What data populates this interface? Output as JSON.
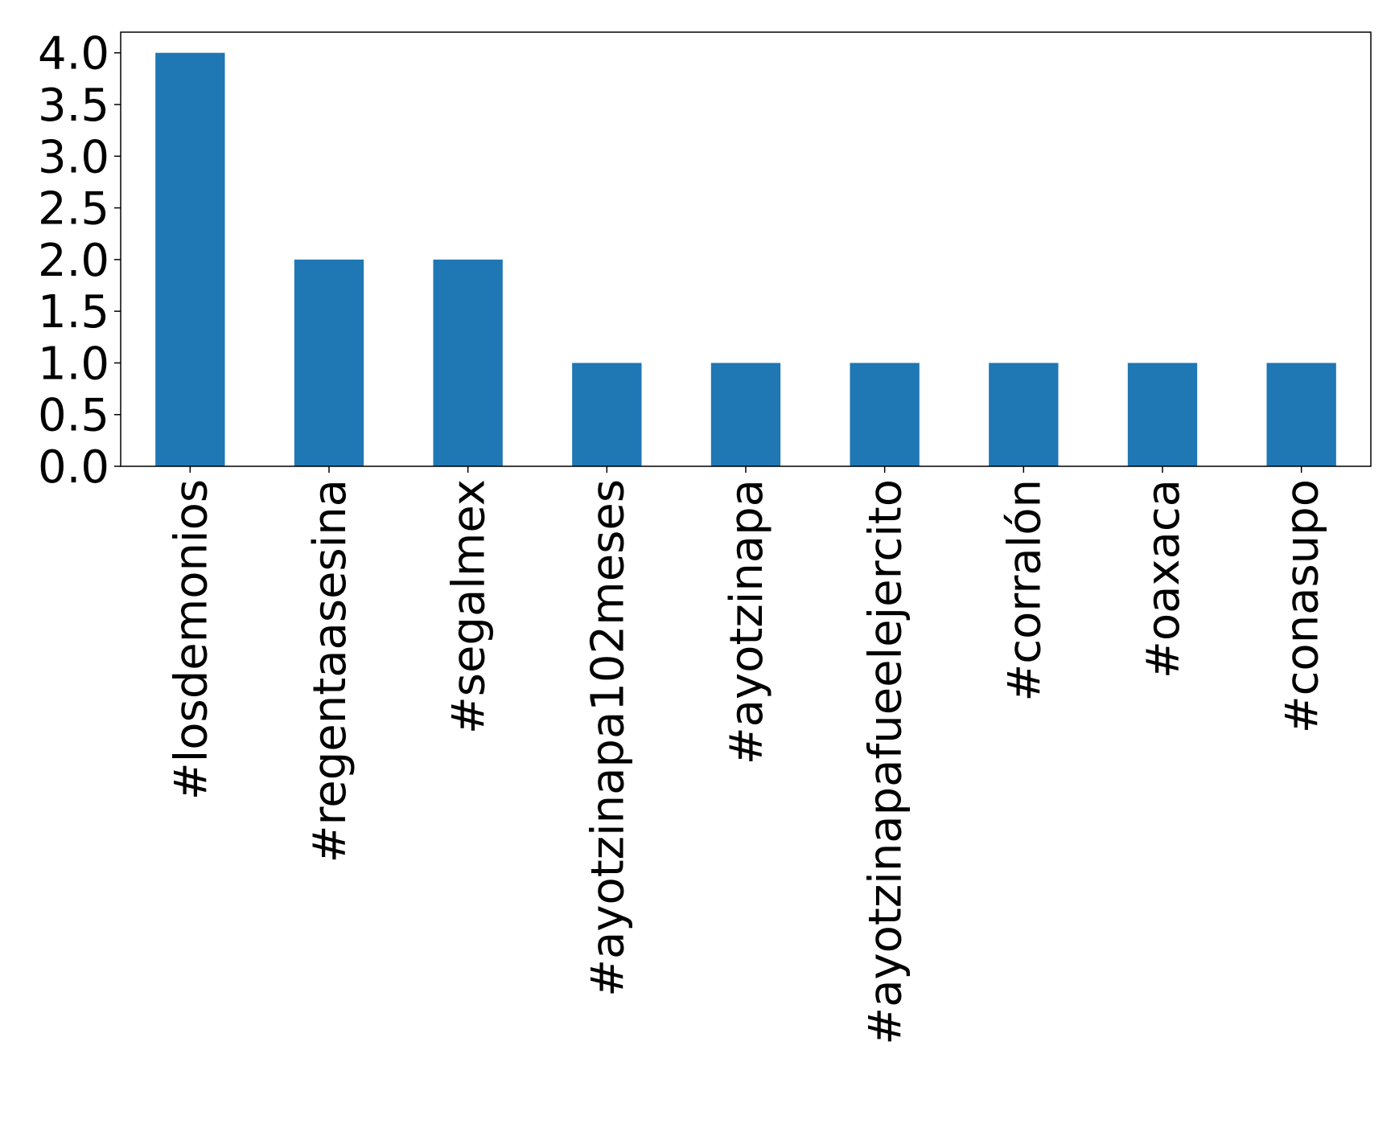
{
  "chart_data": {
    "type": "bar",
    "categories": [
      "#losdemonios",
      "#regentaasesina",
      "#segalmex",
      "#ayotzinapa102meses",
      "#ayotzinapa",
      "#ayotzinapafueelejercito",
      "#corralón",
      "#oaxaca",
      "#conasupo"
    ],
    "values": [
      4,
      2,
      2,
      1,
      1,
      1,
      1,
      1,
      1
    ],
    "title": "",
    "xlabel": "",
    "ylabel": "",
    "ylim": [
      0,
      4.2
    ],
    "yticks": [
      "0.0",
      "0.5",
      "1.0",
      "1.5",
      "2.0",
      "2.5",
      "3.0",
      "3.5",
      "4.0"
    ],
    "grid": false,
    "legend": "none",
    "bar_color": "#1f77b4"
  }
}
